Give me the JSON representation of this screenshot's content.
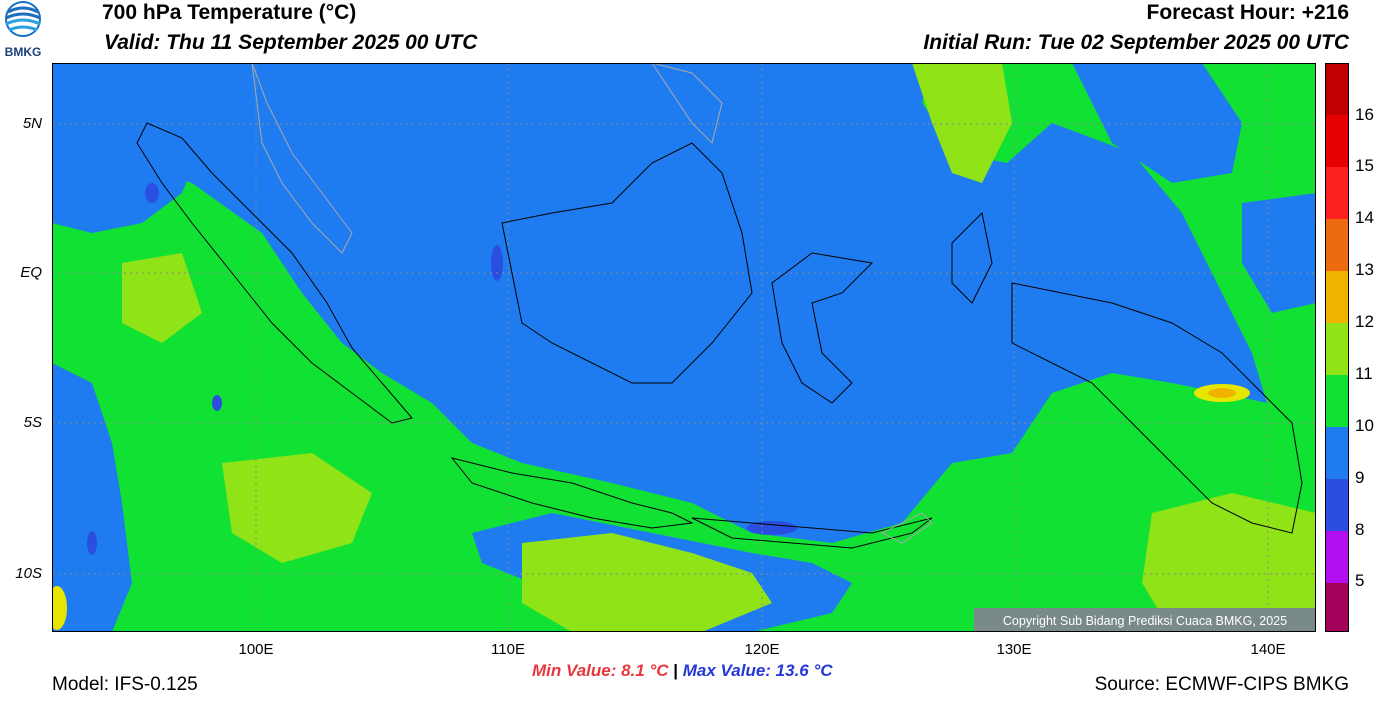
{
  "header": {
    "title": "700 hPa Temperature (°C)",
    "valid": "Valid: Thu 11 September 2025 00 UTC",
    "forecast_hour": "Forecast Hour: +216",
    "initial_run": "Initial Run: Tue 02 September 2025 00 UTC",
    "logo_text": "BMKG"
  },
  "axes": {
    "lat_labels": [
      "5N",
      "EQ",
      "5S",
      "10S"
    ],
    "lon_labels": [
      "100E",
      "110E",
      "120E",
      "130E",
      "140E"
    ]
  },
  "legend": {
    "labels": [
      "16",
      "15",
      "14",
      "13",
      "12",
      "11",
      "10",
      "9",
      "8",
      "5"
    ],
    "colors": [
      "#c00000",
      "#e60000",
      "#ff2020",
      "#ec6a10",
      "#f0b400",
      "#e6e600",
      "#8fe317",
      "#10e133",
      "#1f7cf0",
      "#2a4fe0",
      "#b10ff0",
      "#a5005a"
    ]
  },
  "map": {
    "copyright": "Copyright Sub Bidang Prediksi Cuaca BMKG, 2025",
    "colors": {
      "green": "#10e133",
      "blue": "#1f7cf0",
      "lime": "#8fe317",
      "yellow": "#e6e600",
      "dark_blue": "#2a4fe0",
      "orange": "#f0b400"
    }
  },
  "footer": {
    "model": "Model: IFS-0.125",
    "min_value": "Min Value: 8.1 °C",
    "separator": "|",
    "max_value": "Max Value: 13.6 °C",
    "source": "Source: ECMWF-CIPS BMKG"
  }
}
